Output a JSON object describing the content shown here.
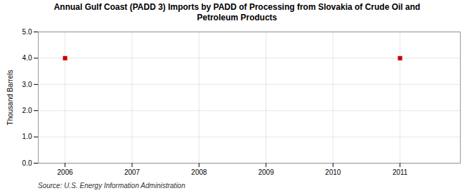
{
  "chart_data": {
    "type": "scatter",
    "title": "Annual Gulf Coast (PADD 3) Imports by PADD of Processing from Slovakia of Crude Oil and\nPetroleum Products",
    "ylabel": "Thousand Barrels",
    "annotations": [
      "Source: U.S. Energy Information Administration"
    ],
    "x": [
      2006,
      2011
    ],
    "values": [
      4.0,
      4.0
    ],
    "color": "#cc0000",
    "marker": "square",
    "xlim": [
      2005.6,
      2011.9
    ],
    "ylim": [
      0.0,
      5.0
    ],
    "xticks": [
      2006,
      2007,
      2008,
      2009,
      2010,
      2011
    ],
    "yticks": [
      {
        "value": 0.0,
        "label": "0.0"
      },
      {
        "value": 1.0,
        "label": "1.0"
      },
      {
        "value": 2.0,
        "label": "2.0"
      },
      {
        "value": 3.0,
        "label": "3.0"
      },
      {
        "value": 4.0,
        "label": "4.0"
      },
      {
        "value": 5.0,
        "label": "5.0"
      }
    ],
    "grid": true
  }
}
